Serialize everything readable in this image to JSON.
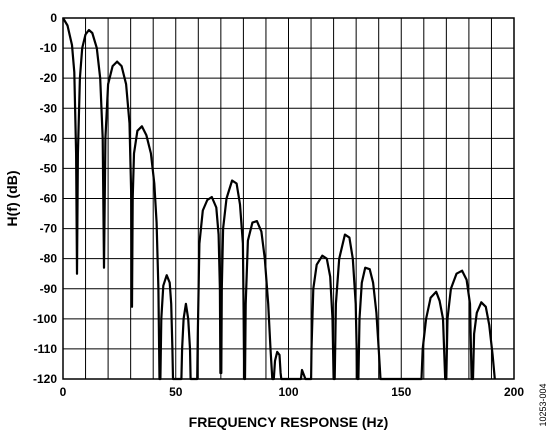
{
  "chart_data": {
    "type": "line",
    "xlabel": "FREQUENCY RESPONSE (Hz)",
    "ylabel": "H(f) (dB)",
    "xlim": [
      0,
      200
    ],
    "ylim": [
      -120,
      0
    ],
    "xticks": [
      0,
      50,
      100,
      150,
      200
    ],
    "yticks": [
      0,
      -10,
      -20,
      -30,
      -40,
      -50,
      -60,
      -70,
      -80,
      -90,
      -100,
      -110,
      -120
    ],
    "grid": true,
    "grid_x_step": 10,
    "figure_id": "10253-004",
    "line_color": "#000000",
    "series": [
      {
        "points": [
          [
            0,
            0
          ],
          [
            2,
            -2.5
          ],
          [
            4,
            -9
          ],
          [
            5,
            -18
          ],
          [
            5.8,
            -45
          ],
          [
            6.2,
            -85
          ],
          [
            6.2,
            -85
          ],
          [
            6.6,
            -45
          ],
          [
            7.5,
            -20
          ],
          [
            8.5,
            -10
          ],
          [
            10,
            -5.5
          ],
          [
            11.5,
            -4
          ],
          [
            13,
            -5
          ],
          [
            15,
            -10
          ],
          [
            16.5,
            -20
          ],
          [
            17.6,
            -40
          ],
          [
            18.2,
            -83
          ],
          [
            18.2,
            -83
          ],
          [
            18.8,
            -40
          ],
          [
            20,
            -22
          ],
          [
            22,
            -16
          ],
          [
            24,
            -14.5
          ],
          [
            26,
            -16
          ],
          [
            28,
            -22
          ],
          [
            29.5,
            -35
          ],
          [
            30.3,
            -60
          ],
          [
            30.6,
            -96
          ],
          [
            30.9,
            -60
          ],
          [
            31.5,
            -45
          ],
          [
            33,
            -37.5
          ],
          [
            35,
            -36
          ],
          [
            37,
            -39
          ],
          [
            39,
            -45
          ],
          [
            40.5,
            -55
          ],
          [
            41.5,
            -68
          ],
          [
            42.3,
            -90
          ],
          [
            42.8,
            -120
          ],
          [
            43.2,
            -120
          ],
          [
            43.6,
            -100
          ],
          [
            44.5,
            -89
          ],
          [
            46,
            -85.5
          ],
          [
            47.3,
            -88
          ],
          [
            48,
            -95
          ],
          [
            48.5,
            -110
          ],
          [
            48.8,
            -120
          ],
          [
            52.5,
            -120
          ],
          [
            52.8,
            -110
          ],
          [
            53.5,
            -100
          ],
          [
            54.5,
            -95
          ],
          [
            55.5,
            -100
          ],
          [
            56.3,
            -110
          ],
          [
            56.6,
            -120
          ],
          [
            59.5,
            -120
          ],
          [
            59.8,
            -105
          ],
          [
            60.5,
            -75
          ],
          [
            62,
            -64
          ],
          [
            64,
            -60.5
          ],
          [
            66,
            -59.5
          ],
          [
            68,
            -63
          ],
          [
            69,
            -72
          ],
          [
            69.6,
            -90
          ],
          [
            69.8,
            -118
          ],
          [
            70.2,
            -118
          ],
          [
            70.4,
            -90
          ],
          [
            71,
            -70
          ],
          [
            72.5,
            -60
          ],
          [
            75,
            -54
          ],
          [
            77,
            -55
          ],
          [
            78.5,
            -62
          ],
          [
            79.8,
            -75
          ],
          [
            80.4,
            -120
          ],
          [
            80.7,
            -120
          ],
          [
            81,
            -95
          ],
          [
            82,
            -74
          ],
          [
            84,
            -68
          ],
          [
            86,
            -67.5
          ],
          [
            88,
            -71
          ],
          [
            89.5,
            -80
          ],
          [
            91,
            -95
          ],
          [
            92,
            -110
          ],
          [
            92.8,
            -120
          ],
          [
            93.5,
            -120
          ],
          [
            94,
            -114
          ],
          [
            95,
            -111
          ],
          [
            96,
            -112
          ],
          [
            96.5,
            -118
          ],
          [
            96.8,
            -120
          ],
          [
            105.5,
            -120
          ],
          [
            106,
            -117
          ],
          [
            107,
            -119
          ],
          [
            107.5,
            -120
          ],
          [
            110,
            -120
          ],
          [
            110.2,
            -110
          ],
          [
            111,
            -90
          ],
          [
            112.5,
            -82
          ],
          [
            115,
            -79
          ],
          [
            117,
            -80
          ],
          [
            118.5,
            -86
          ],
          [
            119.5,
            -100
          ],
          [
            120,
            -120
          ],
          [
            120.5,
            -120
          ],
          [
            121,
            -95
          ],
          [
            122.5,
            -80
          ],
          [
            125,
            -72
          ],
          [
            127,
            -73
          ],
          [
            128.5,
            -80
          ],
          [
            129.8,
            -95
          ],
          [
            130.5,
            -120
          ],
          [
            131,
            -120
          ],
          [
            131.5,
            -100
          ],
          [
            132.5,
            -88
          ],
          [
            134,
            -83
          ],
          [
            136,
            -83.5
          ],
          [
            137.5,
            -88
          ],
          [
            139,
            -98
          ],
          [
            140,
            -110
          ],
          [
            140.8,
            -120
          ],
          [
            159,
            -120
          ],
          [
            159.5,
            -110
          ],
          [
            161,
            -100
          ],
          [
            163,
            -93
          ],
          [
            165.5,
            -91
          ],
          [
            167,
            -94
          ],
          [
            168.5,
            -100
          ],
          [
            169.5,
            -120
          ],
          [
            170,
            -120
          ],
          [
            170.5,
            -100
          ],
          [
            172,
            -90
          ],
          [
            174.5,
            -85
          ],
          [
            177,
            -84
          ],
          [
            179,
            -87
          ],
          [
            180.5,
            -95
          ],
          [
            181.2,
            -120
          ],
          [
            181.8,
            -120
          ],
          [
            182.3,
            -105
          ],
          [
            183.5,
            -98
          ],
          [
            185.5,
            -94.5
          ],
          [
            187.5,
            -96
          ],
          [
            189,
            -102
          ],
          [
            190.5,
            -112
          ],
          [
            191.5,
            -120
          ]
        ]
      }
    ]
  }
}
